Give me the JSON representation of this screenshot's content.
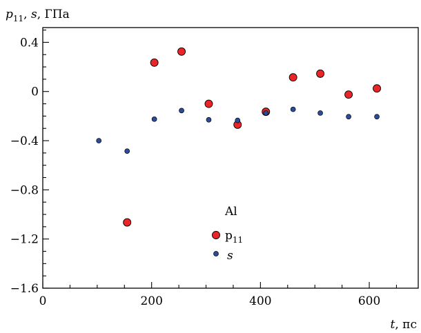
{
  "chart_data": {
    "type": "scatter",
    "ylabel": {
      "sym1": "p",
      "sub1": "11",
      "sep": ", ",
      "sym2": "s",
      "unit": ", ГПа"
    },
    "xlabel": {
      "sym": "t",
      "unit": ", пс"
    },
    "xlim": [
      0,
      690
    ],
    "ylim": [
      -1.6,
      0.52
    ],
    "x_ticks": [
      0,
      200,
      400,
      600
    ],
    "x_minor_step": 50,
    "y_ticks": [
      {
        "value": 0.4,
        "label": "0.4"
      },
      {
        "value": 0,
        "label": "0"
      },
      {
        "value": -0.4,
        "label": "−0.4"
      },
      {
        "value": -0.8,
        "label": "−0.8"
      },
      {
        "value": -1.2,
        "label": "−1.2"
      },
      {
        "value": -1.6,
        "label": "−1.6"
      }
    ],
    "y_minor_step": 0.1,
    "grid": false,
    "legend": {
      "title": "Al",
      "position": "bottom-center"
    },
    "series": [
      {
        "name": "p",
        "name_sub": "11",
        "marker": "large-circle",
        "color": "#e8262a",
        "points": [
          [
            155,
            -1.065
          ],
          [
            205,
            0.235
          ],
          [
            255,
            0.325
          ],
          [
            305,
            -0.1
          ],
          [
            358,
            -0.27
          ],
          [
            410,
            -0.165
          ],
          [
            460,
            0.115
          ],
          [
            510,
            0.145
          ],
          [
            562,
            -0.025
          ],
          [
            614,
            0.025
          ]
        ]
      },
      {
        "name": "s",
        "name_sub": "",
        "marker": "small-circle",
        "color": "#2b4c9a",
        "points": [
          [
            103,
            -0.4
          ],
          [
            155,
            -0.485
          ],
          [
            205,
            -0.225
          ],
          [
            255,
            -0.155
          ],
          [
            305,
            -0.23
          ],
          [
            358,
            -0.235
          ],
          [
            410,
            -0.175
          ],
          [
            460,
            -0.145
          ],
          [
            510,
            -0.175
          ],
          [
            562,
            -0.205
          ],
          [
            614,
            -0.205
          ]
        ]
      }
    ]
  }
}
